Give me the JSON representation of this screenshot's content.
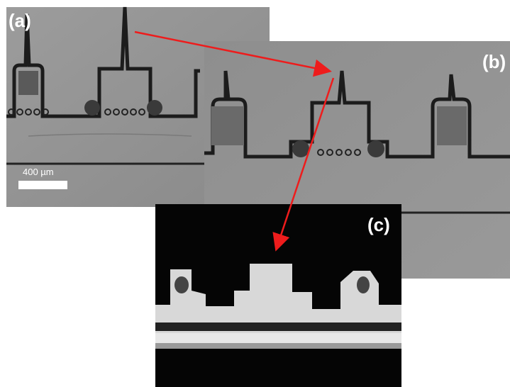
{
  "panels": [
    {
      "label": "(a)"
    },
    {
      "label": "(b)"
    },
    {
      "label": "(c)"
    }
  ],
  "scale_bar": {
    "label": "400 µm"
  }
}
